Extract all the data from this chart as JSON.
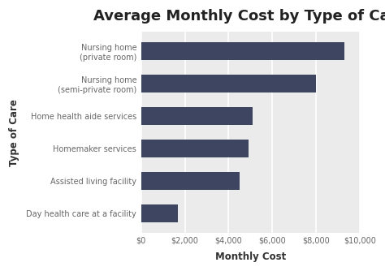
{
  "title": "Average Monthly Cost by Type of Care",
  "xlabel": "Monthly Cost",
  "ylabel": "Type of Care",
  "categories": [
    "Day health care at a facility",
    "Assisted living facility",
    "Homemaker services",
    "Home health aide services",
    "Nursing home\n(semi-private room)",
    "Nursing home\n(private room)"
  ],
  "values": [
    1690,
    4500,
    4900,
    5100,
    8000,
    9300
  ],
  "bar_color": "#3d4560",
  "fig_bg_color": "#ffffff",
  "plot_bg_color": "#ebebeb",
  "xlim": [
    0,
    10000
  ],
  "xticks": [
    0,
    2000,
    4000,
    6000,
    8000,
    10000
  ],
  "tick_labels": [
    "$0",
    "$2,000",
    "$4,000",
    "$6,000",
    "$8,000",
    "$10,000"
  ],
  "title_fontsize": 13,
  "axis_label_fontsize": 8.5,
  "ytick_fontsize": 7,
  "xtick_fontsize": 7,
  "bar_height": 0.55,
  "ylabel_color": "#333333",
  "xlabel_color": "#333333",
  "tick_color": "#666666",
  "title_color": "#222222"
}
